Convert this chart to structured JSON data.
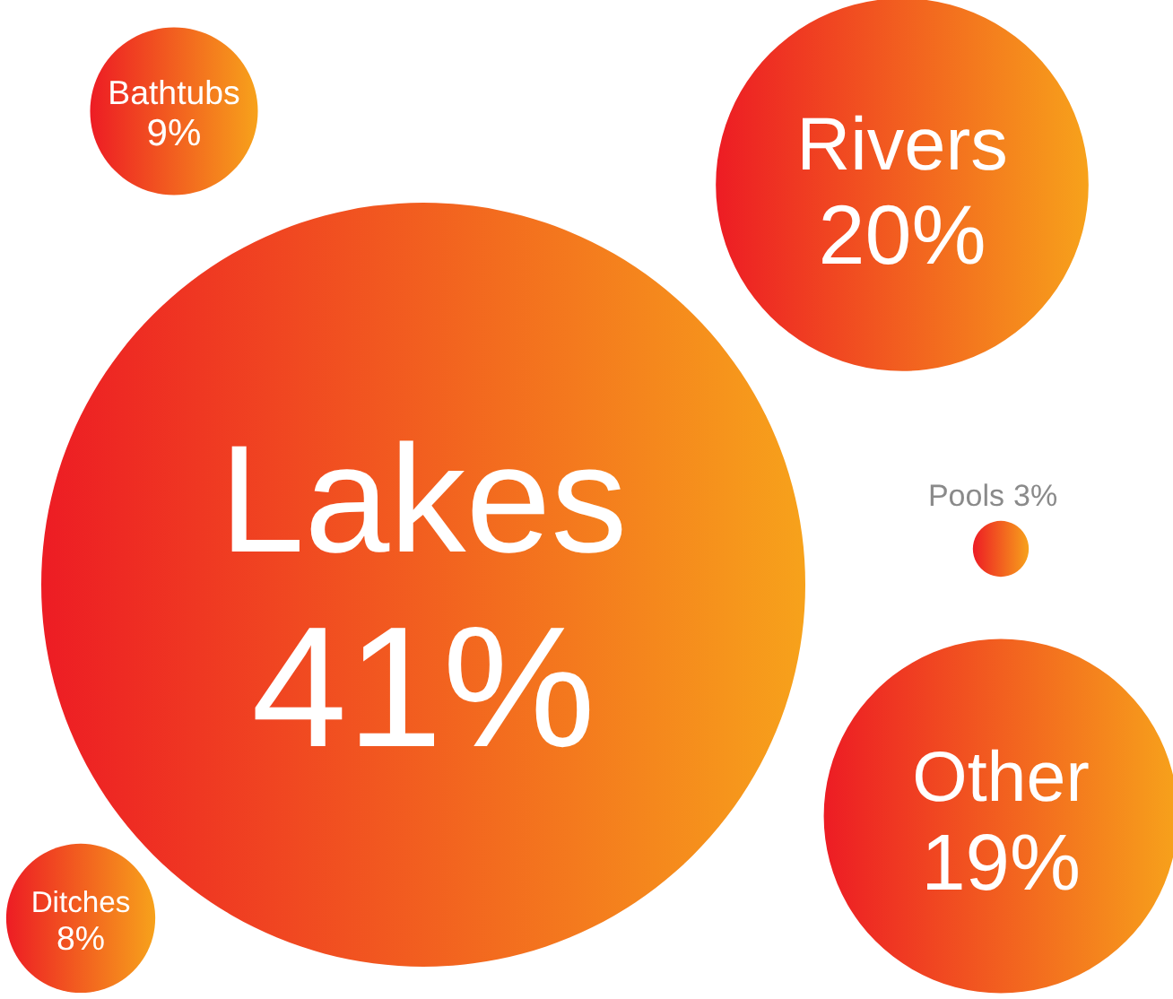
{
  "chart_data": {
    "type": "other",
    "categories": [
      "Bathtubs",
      "Rivers",
      "Lakes",
      "Pools",
      "Other",
      "Ditches"
    ],
    "values": [
      9,
      20,
      41,
      3,
      19,
      8
    ],
    "value_labels": [
      "9%",
      "20%",
      "41%",
      "3%",
      "19%",
      "8%"
    ],
    "colors": [
      "#f7a21b",
      "#f7a21b",
      "#f7a21b",
      "#f7a21b",
      "#f7a21b",
      "#f7a21b"
    ]
  }
}
